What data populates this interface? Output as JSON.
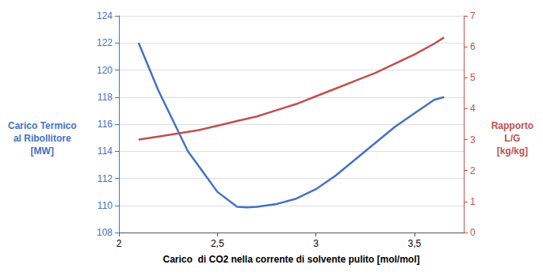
{
  "chart_data": {
    "type": "line",
    "xlabel": "Carico  di CO2 nella corrente di solvente pulito [mol/mol]",
    "ylabel": "Carico Termico\nal Ribollitore\n[MW]",
    "y2label": "Rapporto\nL/G\n[kg/kg]",
    "series": [
      {
        "color": "#4472C4",
        "x": [
          2.1,
          2.2,
          2.35,
          2.5,
          2.6,
          2.65,
          2.7,
          2.8,
          2.9,
          3.0,
          3.1,
          3.2,
          3.3,
          3.4,
          3.5,
          3.6,
          3.65
        ],
        "values": [
          122.0,
          118.5,
          114.0,
          111.0,
          109.9,
          109.85,
          109.9,
          110.1,
          110.5,
          111.2,
          112.2,
          113.4,
          114.6,
          115.8,
          116.8,
          117.8,
          118.0
        ]
      },
      {
        "color": "#C0504D",
        "axis": "y2",
        "x": [
          2.1,
          2.2,
          2.3,
          2.4,
          2.5,
          2.6,
          2.7,
          2.8,
          2.9,
          3.0,
          3.1,
          3.2,
          3.3,
          3.4,
          3.5,
          3.6,
          3.65
        ],
        "values": [
          3.0,
          3.1,
          3.2,
          3.3,
          3.45,
          3.6,
          3.75,
          3.95,
          4.15,
          4.4,
          4.65,
          4.9,
          5.15,
          5.45,
          5.75,
          6.1,
          6.3
        ]
      }
    ],
    "xlim": [
      2.0,
      3.75
    ],
    "xticks": [
      2,
      {
        "value": 2.5,
        "label": "2,5"
      },
      3,
      {
        "value": 3.5,
        "label": "3,5"
      }
    ],
    "ylim": [
      108,
      124
    ],
    "yticks": [
      108,
      110,
      112,
      114,
      116,
      118,
      120,
      122,
      124
    ],
    "y2lim": [
      0,
      7
    ],
    "y2ticks": [
      0,
      1,
      2,
      3,
      4,
      5,
      6,
      7
    ],
    "grid": true
  }
}
